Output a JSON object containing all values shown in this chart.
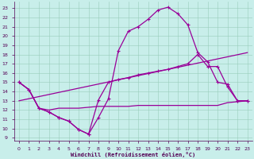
{
  "xlabel": "Windchill (Refroidissement éolien,°C)",
  "bg_color": "#c8eeea",
  "grid_color": "#99ccbb",
  "line_color": "#990099",
  "xlim": [
    -0.5,
    23.5
  ],
  "ylim": [
    8.7,
    23.7
  ],
  "x_ticks": [
    0,
    1,
    2,
    3,
    4,
    5,
    6,
    7,
    8,
    9,
    10,
    11,
    12,
    13,
    14,
    15,
    16,
    17,
    18,
    19,
    20,
    21,
    22,
    23
  ],
  "y_ticks": [
    9,
    10,
    11,
    12,
    13,
    14,
    15,
    16,
    17,
    18,
    19,
    20,
    21,
    22,
    23
  ],
  "line_peak_x": [
    0,
    1,
    2,
    3,
    4,
    5,
    6,
    7,
    8,
    9,
    10,
    11,
    12,
    13,
    14,
    15,
    16,
    17,
    18,
    19,
    20,
    21,
    22,
    23
  ],
  "line_peak_y": [
    15.0,
    14.2,
    12.2,
    11.8,
    11.2,
    10.8,
    9.9,
    9.4,
    11.2,
    13.2,
    18.4,
    20.5,
    21.0,
    21.8,
    22.8,
    23.1,
    22.4,
    21.2,
    18.2,
    17.2,
    15.0,
    14.8,
    13.0,
    13.0
  ],
  "line_mid_x": [
    0,
    1,
    2,
    3,
    4,
    5,
    6,
    7,
    8,
    9,
    10,
    11,
    12,
    13,
    14,
    15,
    16,
    17,
    18,
    19,
    20,
    21,
    22,
    23
  ],
  "line_mid_y": [
    15.0,
    14.2,
    12.2,
    11.8,
    11.2,
    10.8,
    9.9,
    9.4,
    13.1,
    15.0,
    15.3,
    15.5,
    15.8,
    16.0,
    16.2,
    16.4,
    16.7,
    17.0,
    18.0,
    16.7,
    16.7,
    14.5,
    13.0,
    13.0
  ],
  "line_flat_x": [
    0,
    1,
    2,
    3,
    4,
    5,
    6,
    7,
    8,
    9,
    10,
    11,
    12,
    13,
    14,
    15,
    16,
    17,
    18,
    19,
    20,
    21,
    22,
    23
  ],
  "line_flat_y": [
    15.0,
    14.2,
    12.2,
    12.0,
    12.2,
    12.2,
    12.2,
    12.3,
    12.4,
    12.4,
    12.4,
    12.4,
    12.5,
    12.5,
    12.5,
    12.5,
    12.5,
    12.5,
    12.5,
    12.5,
    12.5,
    12.8,
    12.9,
    13.0
  ],
  "line_trend_x": [
    0,
    23
  ],
  "line_trend_y": [
    13.0,
    18.2
  ]
}
